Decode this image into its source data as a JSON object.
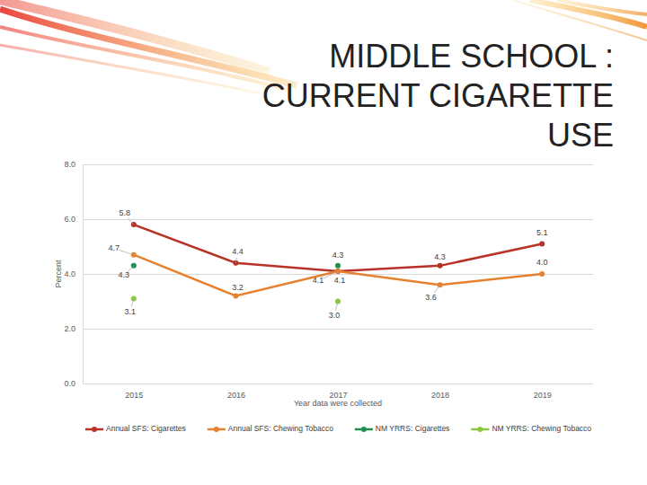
{
  "chart_data": {
    "type": "line",
    "title": "MIDDLE SCHOOL : CURRENT CIGARETTE USE",
    "x_label": "Year data were collected",
    "y_label": "Percent",
    "categories": [
      "2015",
      "2016",
      "2017",
      "2018",
      "2019"
    ],
    "ylim": [
      0,
      8
    ],
    "yticks": [
      {
        "value": 0,
        "label": "0.0"
      },
      {
        "value": 2,
        "label": "2.0"
      },
      {
        "value": 4,
        "label": "4.0"
      },
      {
        "value": 6,
        "label": "6.0"
      },
      {
        "value": 8,
        "label": "8.0"
      }
    ],
    "grid": true,
    "legend": "bottom",
    "data_labels": true,
    "marker": "circle",
    "series": [
      {
        "name": "Annual SFS: Cigarettes",
        "color": "#b83227",
        "line_style": "solid",
        "values": [
          5.8,
          4.4,
          4.1,
          4.3,
          5.1
        ],
        "value_labels": [
          "5.8",
          "4.4",
          "4.1",
          "4.3",
          "5.1"
        ]
      },
      {
        "name": "Annual SFS: Chewing Tobacco",
        "color": "#e5812f",
        "line_style": "solid",
        "values": [
          4.7,
          3.2,
          4.1,
          3.6,
          4.0
        ],
        "value_labels": [
          "4.7",
          "3.2",
          "4.1",
          "3.6",
          "4.0"
        ]
      },
      {
        "name": "NM YRRS: Cigarettes",
        "color": "#1f8f4f",
        "line_style": "solid",
        "values": [
          4.3,
          null,
          4.3,
          null,
          null
        ],
        "value_labels": [
          "4.3",
          null,
          "4.3",
          null,
          null
        ]
      },
      {
        "name": "NM YRRS: Chewing Tobacco",
        "color": "#8dc641",
        "line_style": "solid",
        "values": [
          3.1,
          null,
          3.0,
          null,
          null
        ],
        "value_labels": [
          "3.1",
          null,
          "3.0",
          null,
          null
        ]
      }
    ]
  }
}
